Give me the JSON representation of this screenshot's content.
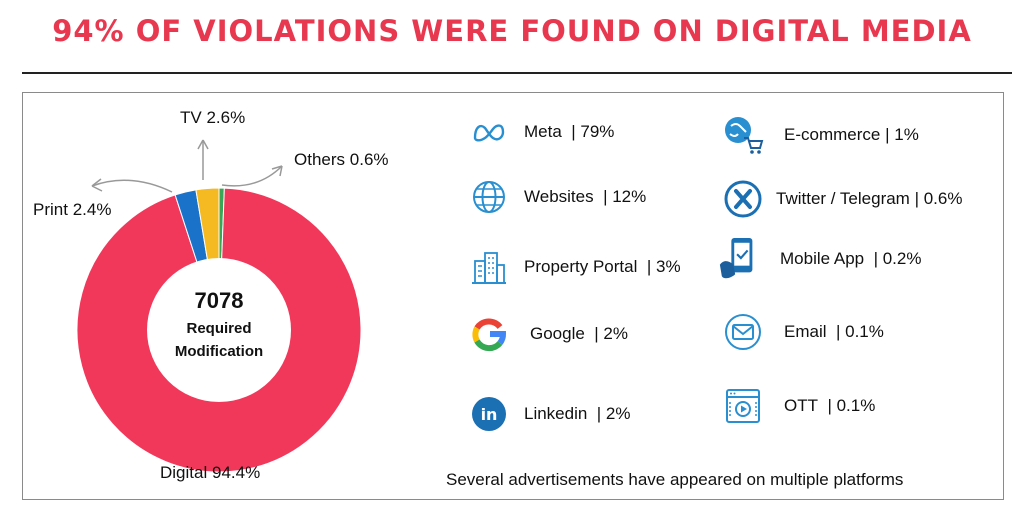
{
  "title": "94% OF VIOLATIONS WERE FOUND ON DIGITAL MEDIA",
  "chart_data": {
    "type": "pie",
    "slices": [
      {
        "label": "Digital",
        "value_label": "94.4%",
        "value": 94.4,
        "color": "#f2385a"
      },
      {
        "label": "Print",
        "value_label": "2.4%",
        "value": 2.4,
        "color": "#1a73c8"
      },
      {
        "label": "TV",
        "value_label": "2.6%",
        "value": 2.6,
        "color": "#f5b921"
      },
      {
        "label": "Others",
        "value_label": "0.6%",
        "value": 0.6,
        "color": "#3aa556"
      }
    ],
    "center": {
      "count": "7078",
      "line1": "Required",
      "line2": "Modification"
    }
  },
  "platforms": [
    {
      "name": "Meta",
      "value": "| 79%",
      "icon": "meta-icon"
    },
    {
      "name": "Websites",
      "value": "| 12%",
      "icon": "globe-icon"
    },
    {
      "name": "Property Portal",
      "value": "| 3%",
      "icon": "building-icon"
    },
    {
      "name": "Google",
      "value": "| 2%",
      "icon": "google-icon"
    },
    {
      "name": "Linkedin",
      "value": "| 2%",
      "icon": "linkedin-icon"
    },
    {
      "name": "E-commerce",
      "value": "| 1%",
      "icon": "shopping-cart-icon"
    },
    {
      "name": "Twitter / Telegram",
      "value": "| 0.6%",
      "icon": "twitter-icon"
    },
    {
      "name": "Mobile App",
      "value": "| 0.2%",
      "icon": "mobile-icon"
    },
    {
      "name": "Email",
      "value": "| 0.1%",
      "icon": "email-icon"
    },
    {
      "name": "OTT",
      "value": "| 0.1%",
      "icon": "ott-icon"
    }
  ],
  "footnote": "Several advertisements have appeared on multiple platforms",
  "colors": {
    "title": "#e8384f",
    "icon_blue": "#2a8fd0"
  }
}
